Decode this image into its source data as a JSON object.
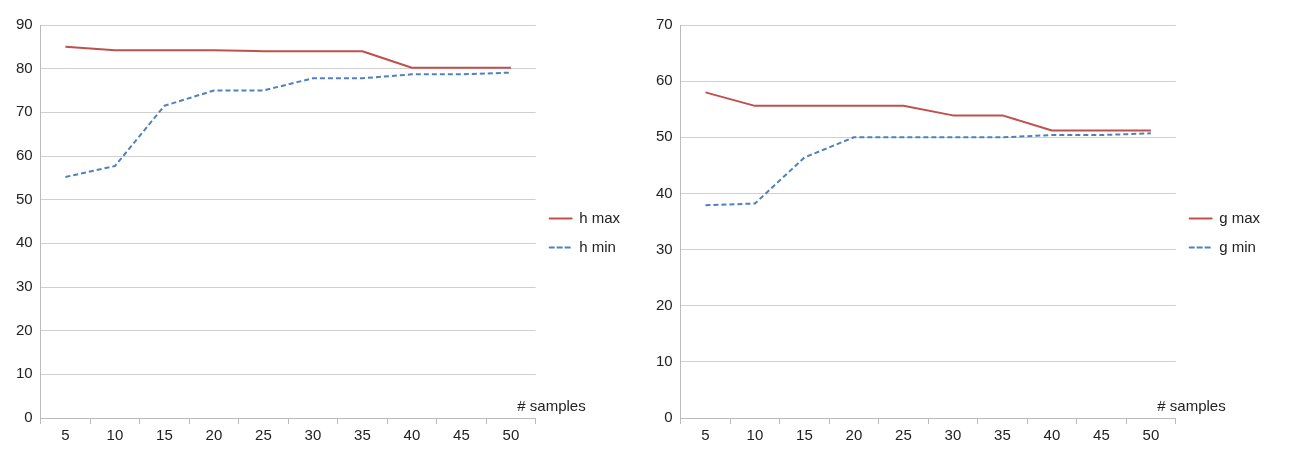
{
  "chart_data": [
    {
      "type": "line",
      "xlabel": "# samples",
      "categories": [
        "5",
        "10",
        "15",
        "20",
        "25",
        "30",
        "35",
        "40",
        "45",
        "50"
      ],
      "ylim": [
        0,
        90
      ],
      "yticks": [
        0,
        10,
        20,
        30,
        40,
        50,
        60,
        70,
        80,
        90
      ],
      "grid": "y",
      "legend": "right",
      "marker": "none",
      "series": [
        {
          "name": "h max",
          "color": "#c0504d",
          "line_style": "solid",
          "values": [
            85,
            84.2,
            84.2,
            84.2,
            84,
            84,
            84,
            80.2,
            80.2,
            80.2
          ]
        },
        {
          "name": "h min",
          "color": "#4f81bd",
          "line_style": "dashed",
          "values": [
            55.2,
            57.7,
            71.5,
            75,
            75,
            77.8,
            77.8,
            78.7,
            78.7,
            79.1
          ]
        }
      ]
    },
    {
      "type": "line",
      "xlabel": "# samples",
      "categories": [
        "5",
        "10",
        "15",
        "20",
        "25",
        "30",
        "35",
        "40",
        "45",
        "50"
      ],
      "ylim": [
        0,
        70
      ],
      "yticks": [
        0,
        10,
        20,
        30,
        40,
        50,
        60,
        70
      ],
      "grid": "y",
      "legend": "right",
      "marker": "none",
      "series": [
        {
          "name": "g max",
          "color": "#c0504d",
          "line_style": "solid",
          "values": [
            58,
            55.6,
            55.6,
            55.6,
            55.6,
            53.9,
            53.9,
            51.2,
            51.2,
            51.2
          ]
        },
        {
          "name": "g min",
          "color": "#4f81bd",
          "line_style": "dashed",
          "values": [
            37.9,
            38.2,
            46.4,
            50,
            50,
            50,
            50,
            50.4,
            50.4,
            50.7
          ]
        }
      ]
    }
  ]
}
